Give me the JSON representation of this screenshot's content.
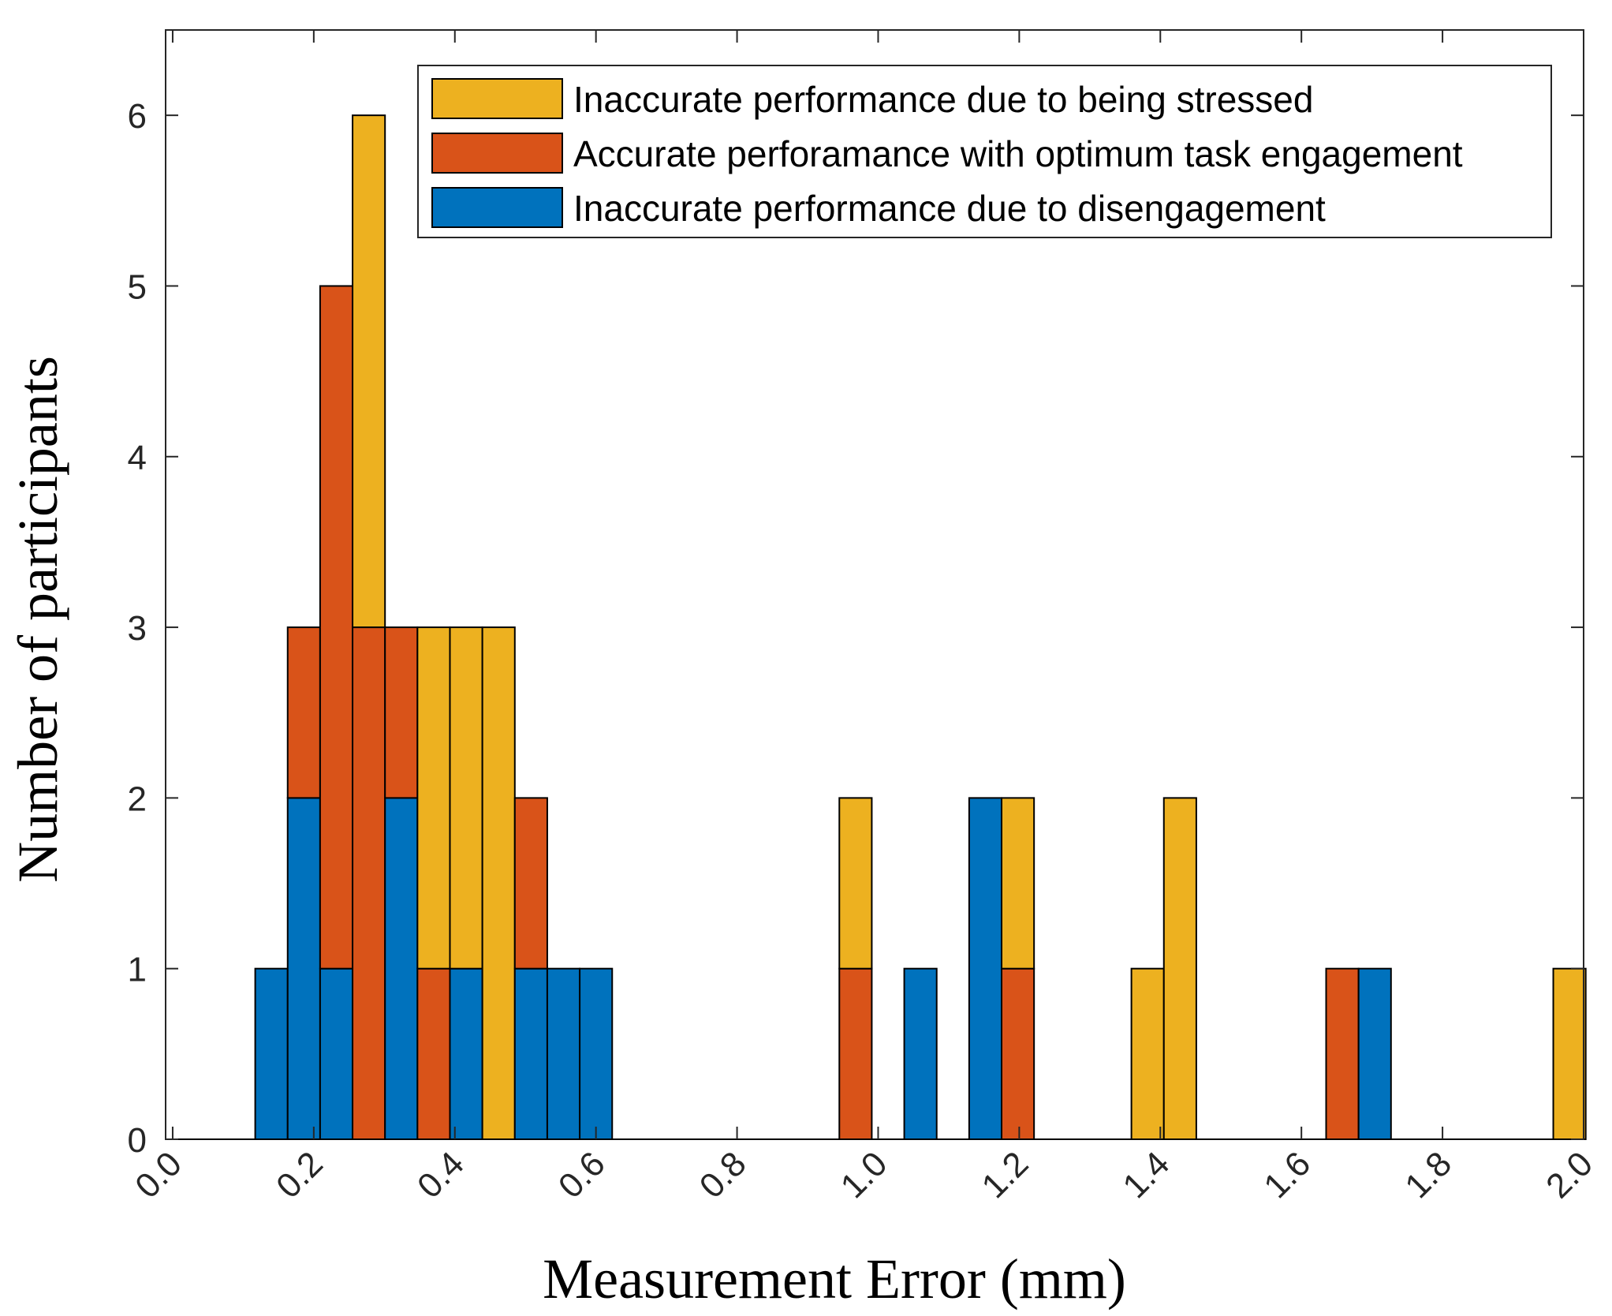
{
  "chart_data": {
    "type": "bar",
    "stacked": true,
    "xlabel": "Measurement Error (mm)",
    "ylabel": "Number of participants",
    "xlim": [
      -0.01,
      2.0
    ],
    "ylim": [
      0,
      6.5
    ],
    "xticks": [
      "0.0",
      "0.2",
      "0.4",
      "0.6",
      "0.8",
      "1.0",
      "1.2",
      "1.4",
      "1.6",
      "1.8",
      "2.0"
    ],
    "xtick_values": [
      0.0,
      0.2,
      0.4,
      0.6,
      0.8,
      1.0,
      1.2,
      1.4,
      1.6,
      1.8,
      2.0
    ],
    "yticks": [
      "0",
      "1",
      "2",
      "3",
      "4",
      "5",
      "6"
    ],
    "ytick_values": [
      0,
      1,
      2,
      3,
      4,
      5,
      6
    ],
    "bin_width": 0.046,
    "x": [
      0.14,
      0.186,
      0.232,
      0.278,
      0.324,
      0.37,
      0.416,
      0.462,
      0.508,
      0.554,
      0.6,
      0.968,
      1.06,
      1.152,
      1.198,
      1.382,
      1.428,
      1.658,
      1.704,
      1.98
    ],
    "series": [
      {
        "name": "Inaccurate performance due to disengagement",
        "color": "#0072BD",
        "values": [
          1,
          2,
          1,
          0,
          2,
          0,
          1,
          0,
          1,
          1,
          1,
          0,
          1,
          2,
          0,
          0,
          0,
          0,
          1,
          0
        ]
      },
      {
        "name": "Accurate perforamance with optimum task engagement",
        "color": "#D95319",
        "values": [
          0,
          1,
          4,
          3,
          1,
          1,
          0,
          0,
          1,
          0,
          0,
          1,
          0,
          0,
          1,
          0,
          0,
          1,
          0,
          0
        ]
      },
      {
        "name": "Inaccurate performance due to being stressed",
        "color": "#EDB120",
        "values": [
          0,
          0,
          0,
          3,
          0,
          2,
          2,
          3,
          0,
          0,
          0,
          1,
          0,
          0,
          1,
          1,
          2,
          0,
          0,
          1
        ]
      }
    ],
    "legend": {
      "location": "top-right",
      "entries": [
        {
          "label": "Inaccurate performance due to being stressed",
          "color": "#EDB120"
        },
        {
          "label": "Accurate perforamance with optimum task engagement",
          "color": "#D95319"
        },
        {
          "label": "Inaccurate performance due to disengagement",
          "color": "#0072BD"
        }
      ]
    },
    "grid": false
  }
}
